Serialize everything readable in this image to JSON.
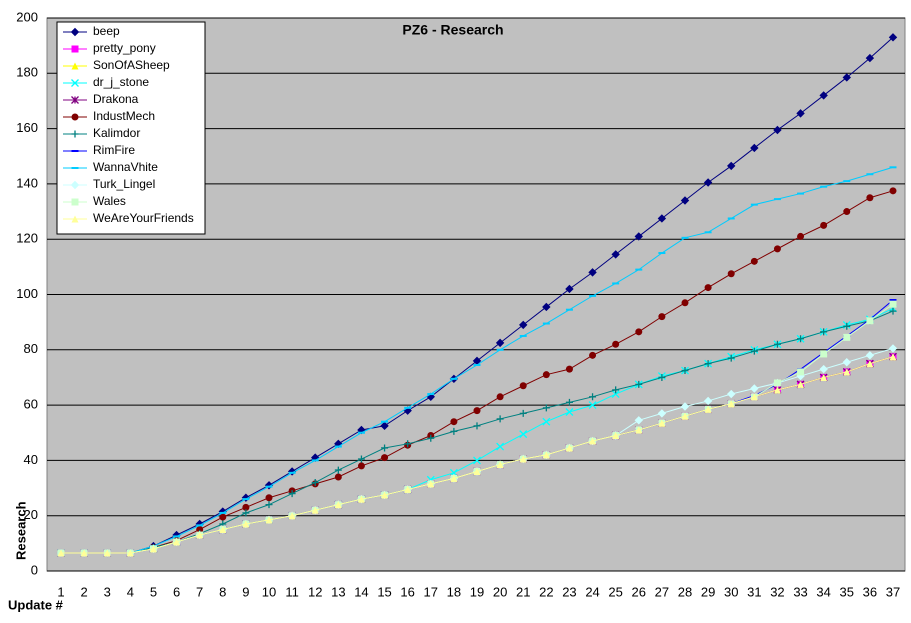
{
  "chart_data": {
    "type": "line",
    "title": "PZ6 - Research",
    "x_label": "Update #",
    "y_label": "Research",
    "categories": [
      1,
      2,
      3,
      4,
      5,
      6,
      7,
      8,
      9,
      10,
      11,
      12,
      13,
      14,
      15,
      16,
      17,
      18,
      19,
      20,
      21,
      22,
      23,
      24,
      25,
      26,
      27,
      28,
      29,
      30,
      31,
      32,
      33,
      34,
      35,
      36,
      37
    ],
    "ylim": [
      0,
      200
    ],
    "yticks": [
      0,
      20,
      40,
      60,
      80,
      100,
      120,
      140,
      160,
      180,
      200
    ],
    "grid": true,
    "legend": "upper left",
    "plot_background": "#c0c0c0",
    "series": [
      {
        "name": "beep",
        "color": "#000080",
        "marker": "diamond",
        "values": [
          6.5,
          6.5,
          6.5,
          6.5,
          9,
          13,
          17,
          21.5,
          26.5,
          31,
          36,
          41,
          46,
          51,
          52.5,
          58,
          63,
          69.5,
          76,
          82.5,
          89,
          95.5,
          102,
          108,
          114.5,
          121,
          127.5,
          134,
          140.5,
          146.5,
          153,
          159.5,
          165.5,
          172,
          178.5,
          185.5,
          193
        ]
      },
      {
        "name": "pretty_pony",
        "color": "#ff00ff",
        "marker": "square",
        "values": [
          6.5,
          6.5,
          6.5,
          6.5,
          8,
          10.5,
          13,
          15,
          17,
          18.5,
          20,
          22,
          24,
          26,
          27.5,
          29.5,
          31.5,
          33.5,
          36,
          38.5,
          40.5,
          42,
          44.5,
          47,
          49,
          51,
          53.5,
          56,
          58.5,
          60.5,
          63,
          65.5,
          67.5,
          70,
          72,
          75,
          77.5
        ]
      },
      {
        "name": "SonOfASheep",
        "color": "#ffff00",
        "marker": "triangle",
        "values": [
          6.5,
          6.5,
          6.5,
          6.5,
          8,
          10.5,
          13,
          15,
          17,
          18.5,
          20,
          22,
          24,
          26,
          27.5,
          29.5,
          31.5,
          33.5,
          36,
          38.5,
          40.5,
          42,
          44.5,
          47,
          49,
          51,
          53.5,
          56,
          58.5,
          60.5,
          63,
          65.5,
          67.5,
          70,
          72,
          75,
          77.5
        ]
      },
      {
        "name": "dr_j_stone",
        "color": "#00ffff",
        "marker": "x",
        "values": [
          6.5,
          6.5,
          6.5,
          6.5,
          8,
          10.5,
          13,
          15,
          17,
          18.5,
          20,
          22,
          24,
          26,
          27.5,
          29.5,
          33,
          35.5,
          40,
          45,
          49.5,
          54,
          57.5,
          60,
          64,
          67.5,
          70.5,
          72.5,
          75,
          77.5,
          80,
          82,
          84,
          86.5,
          89,
          91,
          95
        ]
      },
      {
        "name": "Drakona",
        "color": "#800080",
        "marker": "star",
        "values": [
          6.5,
          6.5,
          6.5,
          6.5,
          8,
          10.5,
          13,
          15,
          17,
          18.5,
          20,
          22,
          24,
          26,
          27.5,
          29.5,
          31.5,
          33.5,
          36,
          38.5,
          40.5,
          42,
          44.5,
          47,
          49,
          51,
          53.5,
          56,
          58.5,
          60.5,
          63,
          65.5,
          67.5,
          70,
          72,
          75,
          77.5
        ]
      },
      {
        "name": "IndustMech",
        "color": "#800000",
        "marker": "circle",
        "values": [
          6.5,
          6.5,
          6.5,
          6.5,
          8.5,
          11,
          15,
          19.5,
          23,
          26.5,
          29,
          31.5,
          34,
          38,
          41,
          45.5,
          49,
          54,
          58,
          63,
          67,
          71,
          73,
          78,
          82,
          86.5,
          92,
          97,
          102.5,
          107.5,
          112,
          116.5,
          121,
          125,
          130,
          135,
          137.5
        ]
      },
      {
        "name": "Kalimdor",
        "color": "#008080",
        "marker": "plus",
        "values": [
          6.5,
          6.5,
          6.5,
          6.5,
          8.5,
          10.5,
          13.5,
          17,
          21,
          24,
          28,
          32,
          36.5,
          40.5,
          44.5,
          46,
          48,
          50.5,
          52.5,
          55,
          57,
          59,
          61,
          63,
          65.5,
          67.5,
          70,
          72.5,
          75,
          77,
          79.5,
          82,
          84,
          86.5,
          88.5,
          90.5,
          94
        ]
      },
      {
        "name": "RimFire",
        "color": "#0000ff",
        "marker": "dash",
        "values": [
          6.5,
          6.5,
          6.5,
          6.5,
          8,
          10.5,
          13,
          15,
          17,
          18.5,
          20,
          22,
          24,
          26,
          27.5,
          29.5,
          31.5,
          33.5,
          36,
          38.5,
          40.5,
          42,
          44.5,
          47,
          49,
          51,
          53.5,
          56,
          58.5,
          60.5,
          63.5,
          67.5,
          73,
          79,
          85,
          91,
          98
        ]
      },
      {
        "name": "WannaVhite",
        "color": "#00ccff",
        "marker": "dash",
        "values": [
          6.5,
          6.5,
          6.5,
          6.5,
          9,
          12.5,
          16.5,
          21,
          26,
          30.5,
          35.5,
          40,
          45,
          50,
          54,
          59,
          64,
          69.5,
          74.5,
          80,
          85,
          89.5,
          94.5,
          99.5,
          104,
          109,
          115,
          120.5,
          122.5,
          127.5,
          132.5,
          134.5,
          136.5,
          139,
          141,
          143.5,
          146
        ]
      },
      {
        "name": "Turk_Lingel",
        "color": "#ccffff",
        "marker": "diamond",
        "values": [
          6.5,
          6.5,
          6.5,
          6.5,
          8,
          10.5,
          13,
          15,
          17,
          18.5,
          20,
          22,
          24,
          26,
          27.5,
          29.5,
          31.5,
          33.5,
          36,
          38.5,
          40.5,
          42,
          44.5,
          47,
          49,
          54.5,
          57,
          59.5,
          61.5,
          64,
          66,
          68,
          70.5,
          73,
          75.5,
          78,
          80.5
        ]
      },
      {
        "name": "Wales",
        "color": "#ccffcc",
        "marker": "square",
        "values": [
          6.5,
          6.5,
          6.5,
          6.5,
          8,
          10.5,
          13,
          15,
          17,
          18.5,
          20,
          22,
          24,
          26,
          27.5,
          29.5,
          31.5,
          33.5,
          36,
          38.5,
          40.5,
          42,
          44.5,
          47,
          49,
          51,
          53.5,
          56,
          58.5,
          60.5,
          63,
          68,
          72,
          78.5,
          84.5,
          90.5,
          96.5
        ]
      },
      {
        "name": "WeAreYourFriends",
        "color": "#ffff99",
        "marker": "triangle",
        "values": [
          6.5,
          6.5,
          6.5,
          6.5,
          8,
          10.5,
          13,
          15,
          17,
          18.5,
          20,
          22,
          24,
          26,
          27.5,
          29.5,
          31.5,
          33.5,
          36,
          38.5,
          40.5,
          42,
          44.5,
          47,
          49,
          51,
          53.5,
          56,
          58.5,
          60.5,
          63,
          65.5,
          67.5,
          70,
          72,
          75,
          77.5
        ]
      }
    ]
  }
}
